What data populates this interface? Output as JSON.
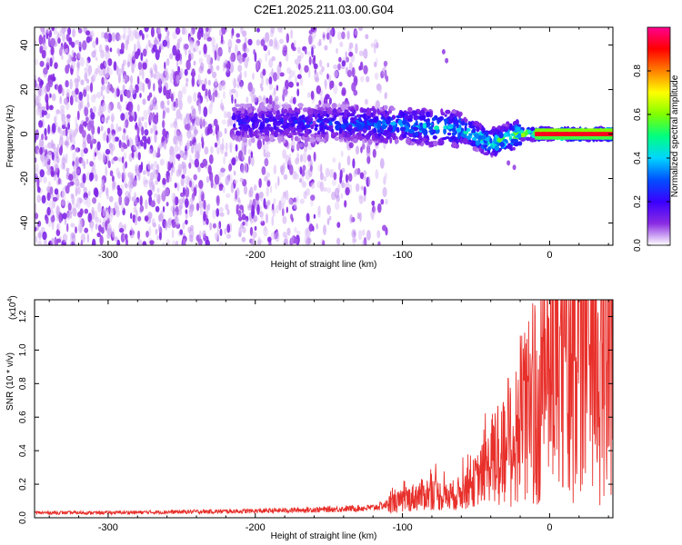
{
  "figure": {
    "title": "C2E1.2025.211.03.00.G04"
  },
  "chart_data": [
    {
      "type": "heatmap",
      "title": "C2E1.2025.211.03.00.G04",
      "xlabel": "Height of straight line (km)",
      "ylabel": "Frequency (Hz)",
      "xlim": [
        -350,
        43
      ],
      "ylim": [
        -50,
        48
      ],
      "x_ticks": [
        -300,
        -200,
        -100,
        0
      ],
      "x_tick_labels": [
        "-300",
        "-200",
        "-100",
        "0"
      ],
      "y_ticks": [
        -40,
        -20,
        0,
        20,
        40
      ],
      "y_tick_labels": [
        "-40",
        "-20",
        "0",
        "20",
        "40"
      ],
      "colorbar": {
        "label": "Normalized spectral amplitude",
        "range": [
          0,
          1
        ],
        "ticks": [
          0.0,
          0.2,
          0.4,
          0.6,
          0.8
        ],
        "tick_labels": [
          "0.0",
          "0.2",
          "0.4",
          "0.6",
          "0.8"
        ],
        "colormap": [
          "#ffffff",
          "#8a2be2",
          "#3a00ff",
          "#0050ff",
          "#00d5ff",
          "#00ff80",
          "#80ff00",
          "#ffff00",
          "#ff8000",
          "#ff0000",
          "#ff0090"
        ]
      },
      "features": {
        "noise_region_x": [
          -350,
          -120
        ],
        "signal_trace": [
          {
            "x": -210,
            "freq": 5,
            "amp": 0.25
          },
          {
            "x": -150,
            "freq": 5,
            "amp": 0.3
          },
          {
            "x": -100,
            "freq": 4,
            "amp": 0.4
          },
          {
            "x": -60,
            "freq": 2,
            "amp": 0.5
          },
          {
            "x": -40,
            "freq": -4,
            "amp": 0.55
          },
          {
            "x": -20,
            "freq": 0,
            "amp": 0.7
          },
          {
            "x": 0,
            "freq": 0,
            "amp": 0.85
          },
          {
            "x": 40,
            "freq": 0,
            "amp": 0.95
          }
        ]
      }
    },
    {
      "type": "line",
      "xlabel": "Height of straight line (km)",
      "ylabel": "SNR (10 * v/v)",
      "y_scale_label": "(x10",
      "y_scale_exponent": "4",
      "y_scale_suffix": ")",
      "xlim": [
        -350,
        43
      ],
      "ylim": [
        0,
        1.3
      ],
      "x_ticks": [
        -300,
        -200,
        -100,
        0
      ],
      "x_tick_labels": [
        "-300",
        "-200",
        "-100",
        "0"
      ],
      "y_ticks": [
        0.0,
        0.2,
        0.4,
        0.6,
        0.8,
        1.0,
        1.2
      ],
      "y_tick_labels": [
        "0.0",
        "0.2",
        "0.4",
        "0.6",
        "0.8",
        "1.0",
        "1.2"
      ],
      "line_color": "#e8302b",
      "series": [
        {
          "x": [
            -350,
            -300,
            -250,
            -200,
            -150,
            -120,
            -100,
            -90,
            -80,
            -70,
            -60,
            -50,
            -40,
            -30,
            -25,
            -20,
            -15,
            -10,
            -5,
            0,
            10,
            20,
            30,
            40,
            43
          ],
          "values": [
            0.03,
            0.03,
            0.035,
            0.04,
            0.05,
            0.06,
            0.1,
            0.13,
            0.15,
            0.12,
            0.15,
            0.22,
            0.32,
            0.45,
            0.5,
            0.6,
            0.65,
            0.72,
            0.8,
            0.9,
            0.98,
            1.05,
            1.1,
            1.15,
            1.2
          ]
        }
      ]
    }
  ]
}
